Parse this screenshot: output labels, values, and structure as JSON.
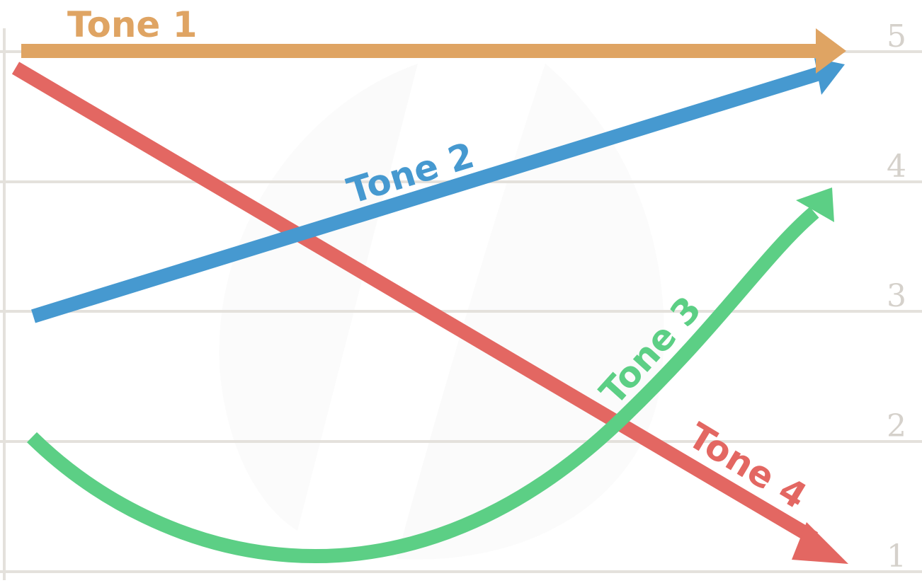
{
  "levels": [
    "5",
    "4",
    "3",
    "2",
    "1"
  ],
  "tones": [
    {
      "id": "tone1",
      "label": "Tone 1",
      "color": "#dfa463",
      "contour": [
        5,
        5
      ]
    },
    {
      "id": "tone2",
      "label": "Tone 2",
      "color": "#4699d0",
      "contour": [
        3,
        5
      ]
    },
    {
      "id": "tone3",
      "label": "Tone 3",
      "color": "#5ccf85",
      "contour": [
        2,
        1,
        4
      ]
    },
    {
      "id": "tone4",
      "label": "Tone 4",
      "color": "#e36762",
      "contour": [
        5,
        1
      ]
    }
  ]
}
